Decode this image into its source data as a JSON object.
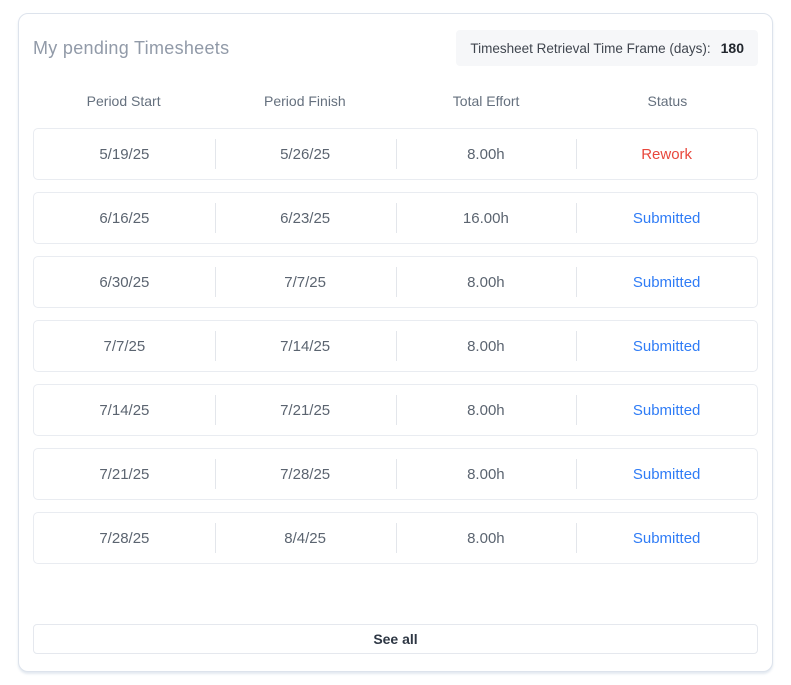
{
  "panel": {
    "title": "My pending Timesheets",
    "retrieval": {
      "label": "Timesheet Retrieval Time Frame (days):",
      "value": "180"
    },
    "columns": [
      "Period Start",
      "Period Finish",
      "Total Effort",
      "Status"
    ],
    "rows": [
      {
        "period_start": "5/19/25",
        "period_finish": "5/26/25",
        "total_effort": "8.00h",
        "status": "Rework",
        "status_type": "rework"
      },
      {
        "period_start": "6/16/25",
        "period_finish": "6/23/25",
        "total_effort": "16.00h",
        "status": "Submitted",
        "status_type": "submitted"
      },
      {
        "period_start": "6/30/25",
        "period_finish": "7/7/25",
        "total_effort": "8.00h",
        "status": "Submitted",
        "status_type": "submitted"
      },
      {
        "period_start": "7/7/25",
        "period_finish": "7/14/25",
        "total_effort": "8.00h",
        "status": "Submitted",
        "status_type": "submitted"
      },
      {
        "period_start": "7/14/25",
        "period_finish": "7/21/25",
        "total_effort": "8.00h",
        "status": "Submitted",
        "status_type": "submitted"
      },
      {
        "period_start": "7/21/25",
        "period_finish": "7/28/25",
        "total_effort": "8.00h",
        "status": "Submitted",
        "status_type": "submitted"
      },
      {
        "period_start": "7/28/25",
        "period_finish": "8/4/25",
        "total_effort": "8.00h",
        "status": "Submitted",
        "status_type": "submitted"
      }
    ],
    "see_all_label": "See all",
    "colors": {
      "rework": "#e8473c",
      "submitted": "#2f7cf6"
    }
  }
}
